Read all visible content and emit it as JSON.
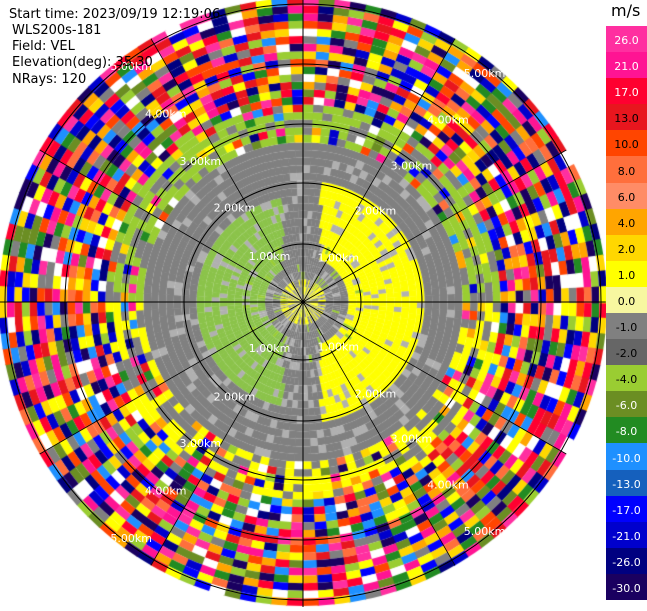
{
  "header": {
    "start_time": "Start time: 2023/09/19 12:19:06",
    "instrument": "WLS200s-181",
    "field": "Field: VEL",
    "elevation": "Elevation(deg): 35.30",
    "nrays": "NRays: 120"
  },
  "colorbar": {
    "unit": "m/s",
    "ticks": [
      "26.0",
      "21.0",
      "17.0",
      "13.0",
      "10.0",
      "8.0",
      "6.0",
      "4.0",
      "2.0",
      "1.0",
      "0.0",
      "-1.0",
      "-2.0",
      "-4.0",
      "-6.0",
      "-8.0",
      "-10.0",
      "-13.0",
      "-17.0",
      "-21.0",
      "-26.0",
      "-30.0"
    ],
    "colors": [
      "#ff2fa0",
      "#ff1493",
      "#ff0030",
      "#e8161e",
      "#ff4500",
      "#ff6f3c",
      "#ff8c66",
      "#ffa500",
      "#ffd700",
      "#ffff00",
      "#f7f7a0",
      "#808080",
      "#666666",
      "#9acd32",
      "#6b8e23",
      "#228b22",
      "#1e90ff",
      "#1560bd",
      "#0000ff",
      "#0000cd",
      "#000080",
      "#1a0060"
    ]
  },
  "range_labels": [
    "1.00km",
    "2.00km",
    "3.00km",
    "4.00km",
    "5.00km"
  ],
  "nrays": 120
}
